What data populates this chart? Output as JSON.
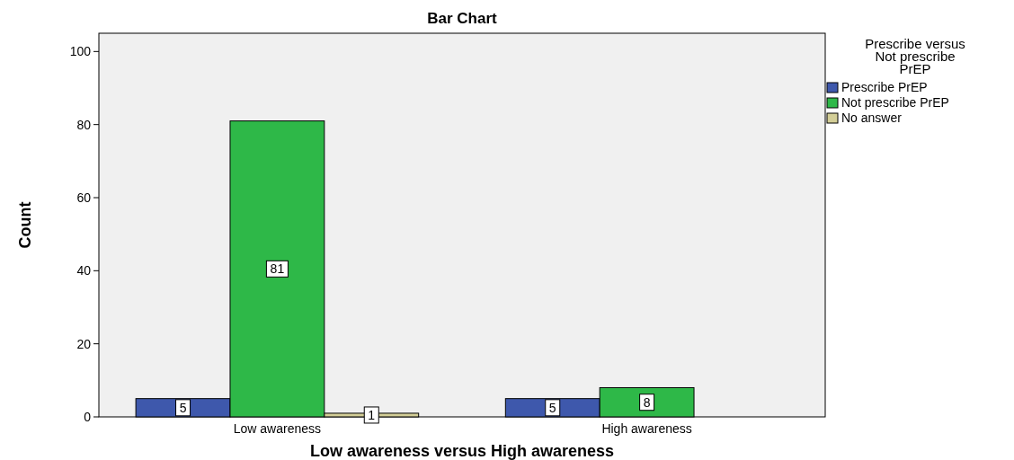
{
  "chart_data": {
    "type": "bar",
    "title": "Bar Chart",
    "xlabel": "Low awareness versus High awareness",
    "ylabel": "Count",
    "legend_title": "Prescribe versus Not prescribe PrEP",
    "categories": [
      "Low awareness",
      "High awareness"
    ],
    "series": [
      {
        "name": "Prescribe PrEP",
        "color": "#3e58ac",
        "values": [
          5,
          5
        ]
      },
      {
        "name": "Not prescribe PrEP",
        "color": "#2eb848",
        "values": [
          81,
          8
        ]
      },
      {
        "name": "No answer",
        "color": "#d3ce97",
        "values": [
          1,
          null
        ]
      }
    ],
    "ylim": [
      0,
      105
    ],
    "yticks": [
      0,
      20,
      40,
      60,
      80,
      100
    ],
    "data_labels": true,
    "legend": "right",
    "grid": false
  }
}
